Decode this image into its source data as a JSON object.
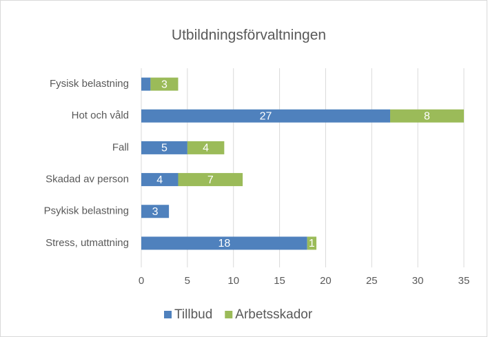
{
  "chart_data": {
    "type": "bar",
    "orientation": "horizontal",
    "stacked": true,
    "title": "Utbildningsförvaltningen",
    "categories": [
      "Fysisk belastning",
      "Hot och våld",
      "Fall",
      "Skadad av person",
      "Psykisk belastning",
      "Stress, utmattning"
    ],
    "series": [
      {
        "name": "Tillbud",
        "color": "#4f81bd",
        "values": [
          1,
          27,
          5,
          4,
          3,
          18
        ],
        "value_labels": [
          null,
          "27",
          "5",
          "4",
          "3",
          "18"
        ]
      },
      {
        "name": "Arbetsskador",
        "color": "#9bbb59",
        "values": [
          3,
          8,
          4,
          7,
          null,
          1
        ],
        "value_labels": [
          "3",
          "8",
          "4",
          "7",
          null,
          "1"
        ]
      }
    ],
    "xlim": [
      0,
      35
    ],
    "xticks": [
      0,
      5,
      10,
      15,
      20,
      25,
      30,
      35
    ],
    "grid": true,
    "legend": "bottom"
  }
}
